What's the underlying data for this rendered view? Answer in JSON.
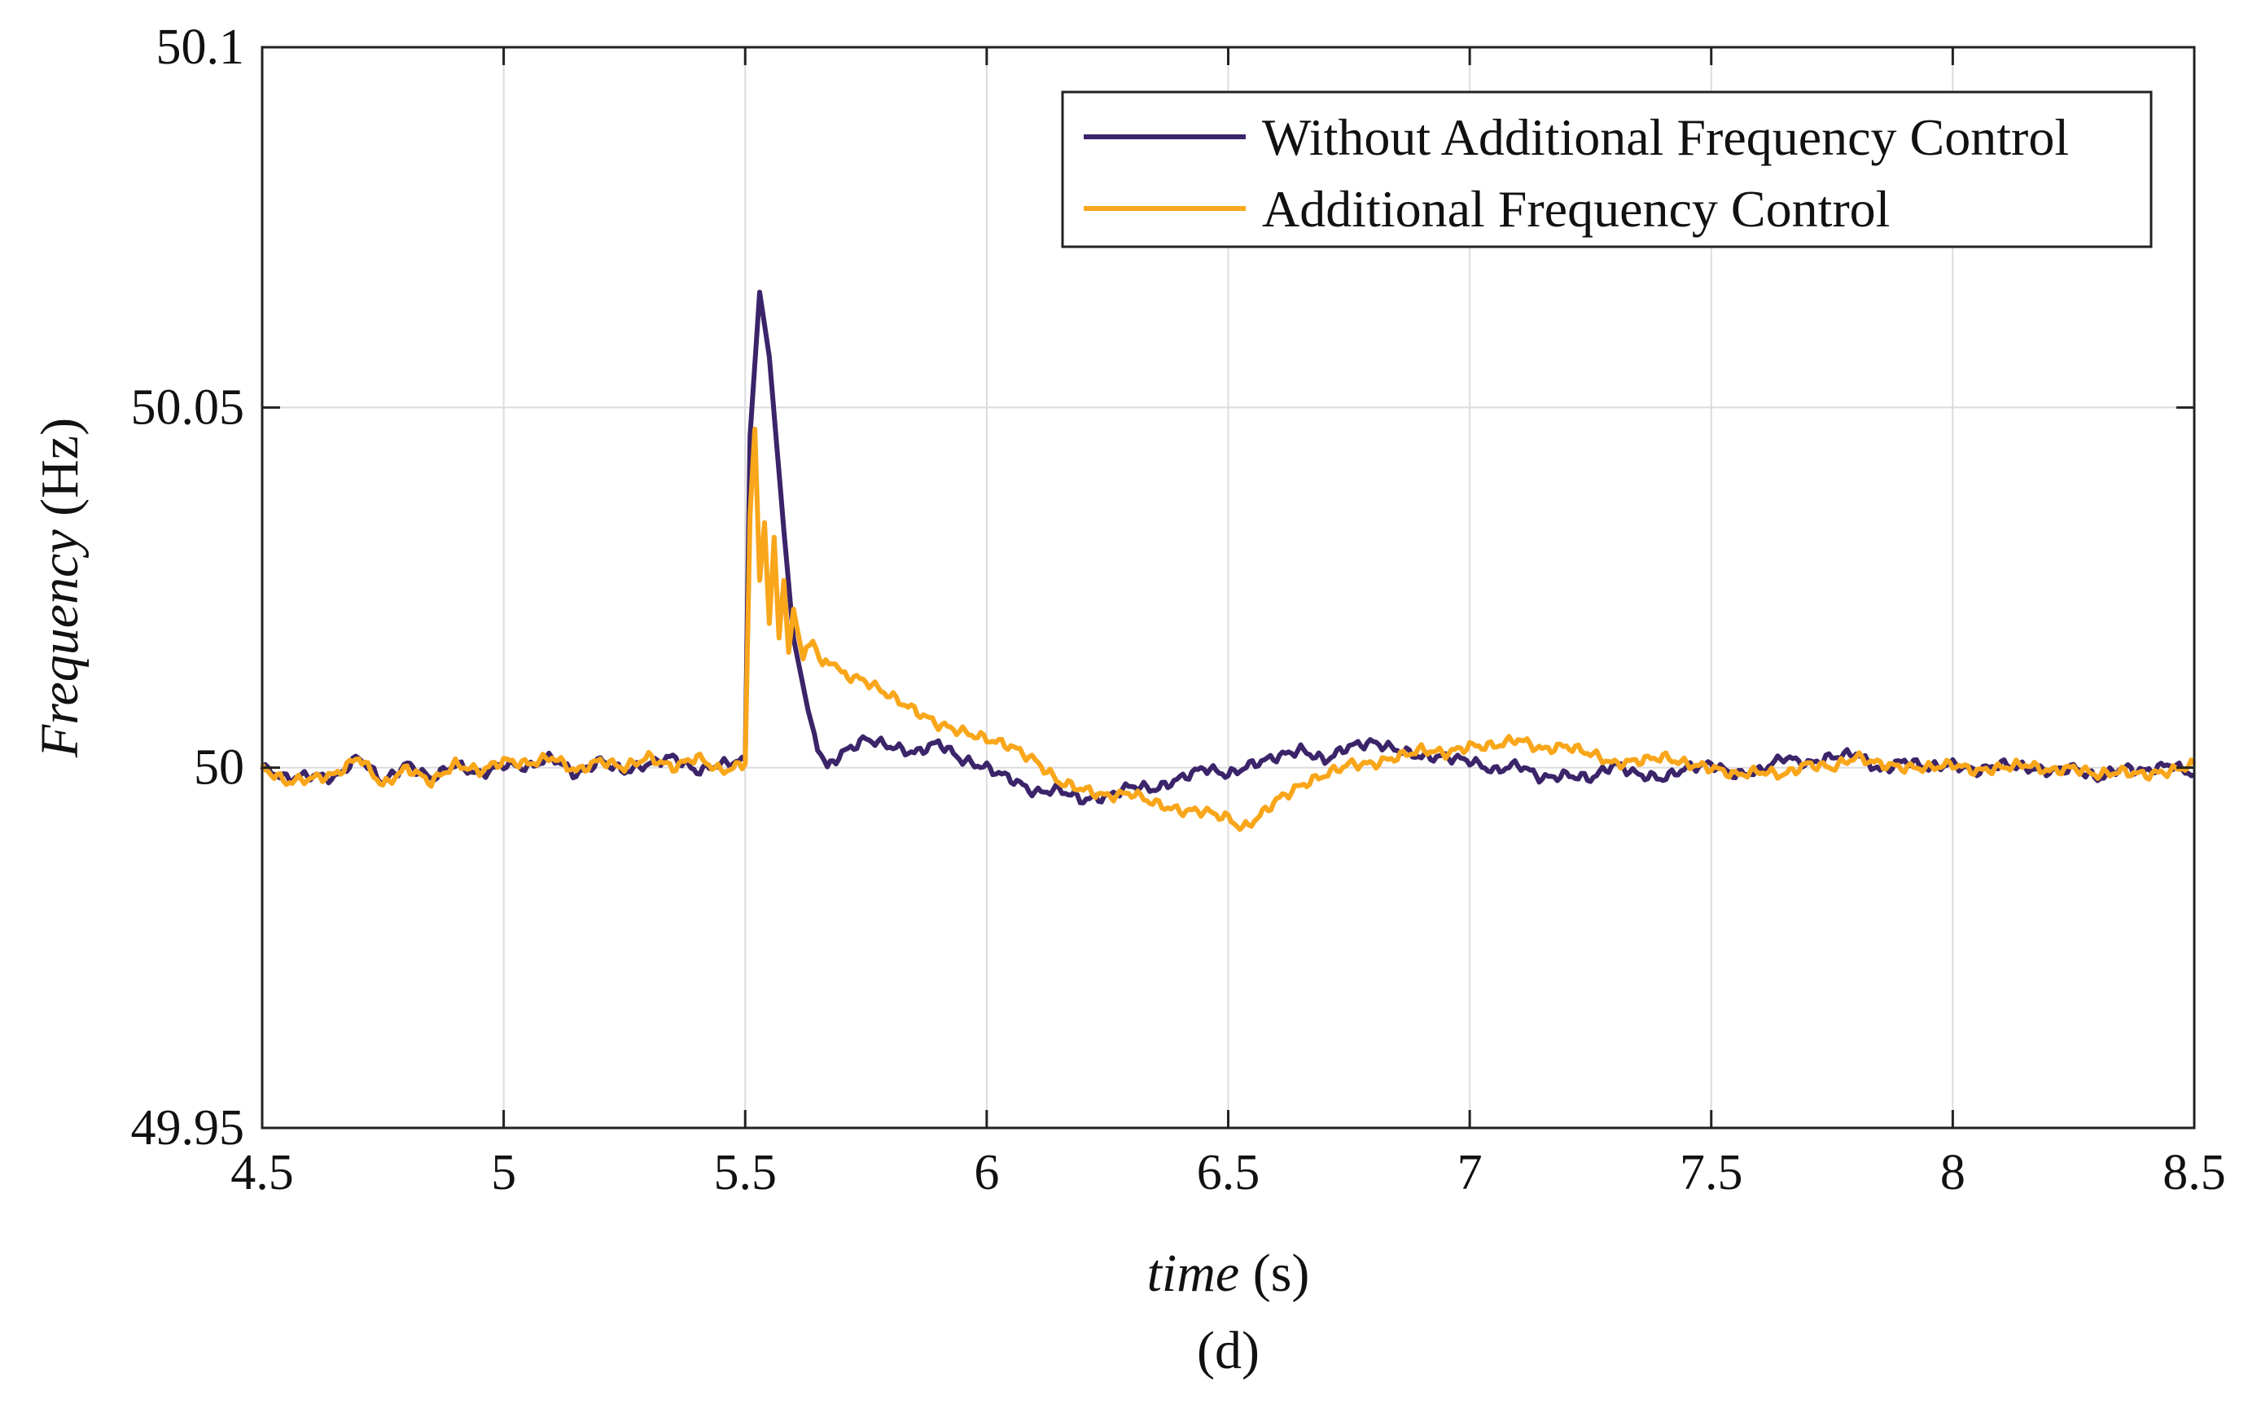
{
  "chart_data": {
    "type": "line",
    "title": "",
    "xlabel": {
      "italic": "time",
      "unit": "(s)"
    },
    "ylabel": {
      "italic": "Frequency",
      "unit": "(Hz)"
    },
    "caption": "(d)",
    "xlim": [
      4.5,
      8.5
    ],
    "ylim": [
      49.95,
      50.1
    ],
    "xticks": [
      4.5,
      5,
      5.5,
      6,
      6.5,
      7,
      7.5,
      8,
      8.5
    ],
    "xtick_labels": [
      "4.5",
      "5",
      "5.5",
      "6",
      "6.5",
      "7",
      "7.5",
      "8",
      "8.5"
    ],
    "yticks": [
      49.95,
      50,
      50.05,
      50.1
    ],
    "ytick_labels": [
      "49.95",
      "50",
      "50.05",
      "50.1"
    ],
    "grid": true,
    "legend_position": "top-right",
    "series": [
      {
        "name": "Without Additional Frequency Control",
        "color": "#3b2469",
        "x": [
          4.5,
          4.55,
          4.6,
          4.65,
          4.7,
          4.75,
          4.8,
          4.85,
          4.9,
          4.95,
          5.0,
          5.05,
          5.1,
          5.15,
          5.2,
          5.25,
          5.3,
          5.35,
          5.4,
          5.45,
          5.5,
          5.51,
          5.53,
          5.55,
          5.58,
          5.6,
          5.63,
          5.65,
          5.67,
          5.7,
          5.75,
          5.8,
          5.85,
          5.9,
          5.95,
          6.0,
          6.05,
          6.1,
          6.15,
          6.2,
          6.25,
          6.3,
          6.35,
          6.4,
          6.45,
          6.5,
          6.55,
          6.6,
          6.65,
          6.7,
          6.75,
          6.8,
          6.85,
          6.9,
          6.95,
          7.0,
          7.05,
          7.1,
          7.15,
          7.2,
          7.25,
          7.3,
          7.35,
          7.4,
          7.45,
          7.5,
          7.55,
          7.6,
          7.65,
          7.7,
          7.75,
          7.8,
          7.85,
          7.9,
          7.95,
          8.0,
          8.05,
          8.1,
          8.15,
          8.2,
          8.25,
          8.3,
          8.35,
          8.4,
          8.45,
          8.5
        ],
        "y": [
          50.0,
          49.9985,
          49.999,
          49.9985,
          50.0015,
          49.998,
          50.0005,
          49.9985,
          50.0005,
          49.999,
          50.0005,
          50.0,
          50.0015,
          49.999,
          50.001,
          49.9995,
          50.0005,
          50.0015,
          49.9995,
          50.0005,
          50.001,
          50.046,
          50.066,
          50.057,
          50.033,
          50.018,
          50.008,
          50.003,
          50.0,
          50.002,
          50.004,
          50.003,
          50.002,
          50.0035,
          50.001,
          50.0,
          49.9985,
          49.9965,
          49.997,
          49.9955,
          49.996,
          49.9975,
          49.997,
          49.9985,
          50.0,
          49.999,
          50.0005,
          50.0015,
          50.0025,
          50.001,
          50.003,
          50.0035,
          50.0025,
          50.0015,
          50.0015,
          50.001,
          49.9995,
          50.0005,
          49.9985,
          49.999,
          49.9985,
          50.0005,
          49.999,
          49.9985,
          50.0,
          50.0005,
          49.999,
          49.9995,
          50.0015,
          50.0005,
          50.0015,
          50.002,
          49.9995,
          50.001,
          50.0,
          50.0005,
          49.9995,
          50.0005,
          50.0,
          49.9995,
          50.0,
          49.9985,
          50.0,
          49.9995,
          50.0005,
          49.999
        ]
      },
      {
        "name": "Additional Frequency Control",
        "color": "#f9a61a",
        "x": [
          4.5,
          4.55,
          4.6,
          4.65,
          4.7,
          4.75,
          4.8,
          4.85,
          4.9,
          4.95,
          5.0,
          5.05,
          5.1,
          5.15,
          5.2,
          5.25,
          5.3,
          5.35,
          5.4,
          5.45,
          5.5,
          5.51,
          5.52,
          5.53,
          5.54,
          5.55,
          5.56,
          5.57,
          5.58,
          5.59,
          5.6,
          5.62,
          5.64,
          5.66,
          5.68,
          5.7,
          5.75,
          5.8,
          5.85,
          5.9,
          5.95,
          6.0,
          6.05,
          6.1,
          6.15,
          6.2,
          6.25,
          6.3,
          6.35,
          6.4,
          6.45,
          6.5,
          6.53,
          6.56,
          6.6,
          6.65,
          6.7,
          6.75,
          6.8,
          6.85,
          6.9,
          6.95,
          7.0,
          7.05,
          7.1,
          7.15,
          7.2,
          7.25,
          7.3,
          7.35,
          7.4,
          7.45,
          7.5,
          7.55,
          7.6,
          7.65,
          7.7,
          7.75,
          7.8,
          7.85,
          7.9,
          7.95,
          8.0,
          8.05,
          8.1,
          8.15,
          8.2,
          8.25,
          8.3,
          8.35,
          8.4,
          8.45,
          8.5
        ],
        "y": [
          50.0,
          49.998,
          49.9985,
          49.999,
          50.0015,
          49.9975,
          50.0,
          49.998,
          50.0005,
          49.9995,
          50.001,
          50.0005,
          50.0015,
          49.9995,
          50.001,
          50.0,
          50.0015,
          50.0,
          50.0015,
          49.9995,
          50.0005,
          50.035,
          50.047,
          50.026,
          50.034,
          50.02,
          50.032,
          50.018,
          50.026,
          50.016,
          50.022,
          50.015,
          50.018,
          50.014,
          50.015,
          50.013,
          50.012,
          50.01,
          50.008,
          50.006,
          50.005,
          50.004,
          50.003,
          50.001,
          49.998,
          49.997,
          49.996,
          49.9965,
          49.995,
          49.994,
          49.994,
          49.993,
          49.9915,
          49.993,
          49.9955,
          49.9975,
          49.999,
          50.0005,
          50.0005,
          50.0015,
          50.0025,
          50.002,
          50.003,
          50.003,
          50.004,
          50.0025,
          50.003,
          50.002,
          50.0005,
          50.001,
          50.0015,
          50.0005,
          50.0,
          49.999,
          49.9995,
          49.999,
          50.0005,
          50.0,
          50.0015,
          50.0005,
          50.0,
          50.0,
          50.0005,
          49.9995,
          50.0,
          50.0005,
          49.9995,
          50.0,
          49.999,
          49.9995,
          49.999,
          49.9995,
          50.0005
        ]
      }
    ]
  }
}
